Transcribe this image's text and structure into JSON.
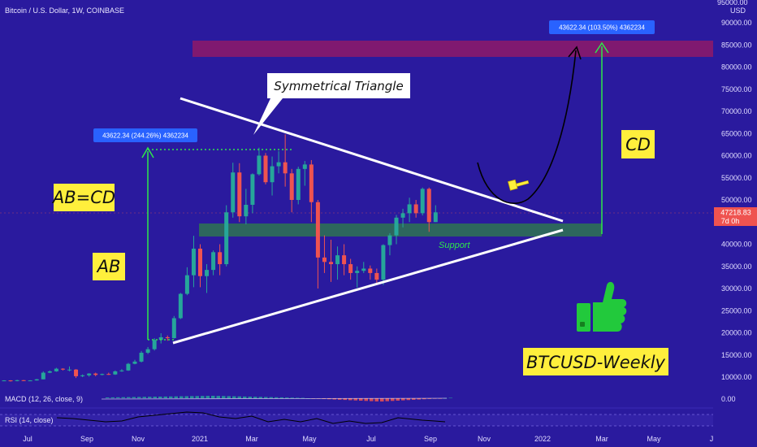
{
  "header": {
    "symbol_title": "Bitcoin / U.S. Dollar, 1W, COINBASE",
    "currency_top": "95000.00",
    "currency": "USD"
  },
  "chart_data": {
    "type": "candlestick",
    "ylim": [
      0,
      95000
    ],
    "y_ticks": [
      90000,
      85000,
      80000,
      75000,
      70000,
      65000,
      60000,
      55000,
      50000,
      45000,
      40000,
      35000,
      30000,
      25000,
      20000,
      15000,
      10000
    ],
    "y_tick_labels": [
      "90000.00",
      "85000.00",
      "80000.00",
      "75000.00",
      "70000.00",
      "65000.00",
      "60000.00",
      "55000.00",
      "50000.00",
      "45000.00",
      "40000.00",
      "35000.00",
      "30000.00",
      "25000.00",
      "20000.00",
      "15000.00",
      "10000.00"
    ],
    "x_labels": [
      "Jul",
      "Sep",
      "Nov",
      "2021",
      "Mar",
      "May",
      "Jul",
      "Sep",
      "Nov",
      "2022",
      "Mar",
      "May",
      "J"
    ],
    "last_price": "47218.83",
    "last_price_sub": "7d 0h",
    "price_axis_zero": "0.00",
    "candles": [
      [
        9200,
        9300,
        9100,
        9250
      ],
      [
        9250,
        9300,
        9000,
        9100
      ],
      [
        9100,
        9400,
        9050,
        9300
      ],
      [
        9300,
        9350,
        9100,
        9200
      ],
      [
        9200,
        9300,
        9150,
        9250
      ],
      [
        9250,
        9600,
        9200,
        9500
      ],
      [
        9500,
        11300,
        9500,
        11000
      ],
      [
        11000,
        11500,
        10900,
        11300
      ],
      [
        11300,
        12100,
        11200,
        11900
      ],
      [
        11900,
        12000,
        11500,
        11700
      ],
      [
        11700,
        12400,
        11300,
        11700
      ],
      [
        11700,
        11800,
        9800,
        10200
      ],
      [
        10200,
        10600,
        10000,
        10400
      ],
      [
        10400,
        10900,
        10100,
        10800
      ],
      [
        10800,
        11000,
        10200,
        10500
      ],
      [
        10500,
        10800,
        10400,
        10700
      ],
      [
        10700,
        11000,
        10500,
        10600
      ],
      [
        10600,
        11500,
        10500,
        11300
      ],
      [
        11300,
        11800,
        11200,
        11500
      ],
      [
        11500,
        13200,
        11400,
        13000
      ],
      [
        13000,
        13900,
        12900,
        13500
      ],
      [
        13500,
        15900,
        13300,
        15500
      ],
      [
        15500,
        16800,
        15200,
        16300
      ],
      [
        16300,
        18800,
        16000,
        18400
      ],
      [
        18400,
        19900,
        17600,
        19000
      ],
      [
        19000,
        19400,
        18200,
        18800
      ],
      [
        18800,
        23800,
        18700,
        23300
      ],
      [
        23300,
        29000,
        23100,
        28800
      ],
      [
        28800,
        34800,
        28500,
        33000
      ],
      [
        33000,
        41900,
        30300,
        39000
      ],
      [
        39000,
        40000,
        30300,
        32800
      ],
      [
        32800,
        35500,
        29000,
        34200
      ],
      [
        34200,
        38600,
        33000,
        38200
      ],
      [
        38200,
        40000,
        33000,
        35500
      ],
      [
        35500,
        48800,
        35000,
        47200
      ],
      [
        47200,
        58400,
        46000,
        56200
      ],
      [
        56200,
        58300,
        45000,
        46300
      ],
      [
        46300,
        52500,
        44500,
        48900
      ],
      [
        48900,
        56000,
        47000,
        55800
      ],
      [
        55800,
        61800,
        55500,
        60000
      ],
      [
        60000,
        60600,
        53500,
        54000
      ],
      [
        54000,
        59800,
        51000,
        57600
      ],
      [
        57600,
        61000,
        56000,
        58500
      ],
      [
        58500,
        64800,
        53000,
        56000
      ],
      [
        56000,
        57000,
        47200,
        50000
      ],
      [
        50000,
        57500,
        49000,
        57000
      ],
      [
        57000,
        58800,
        53200,
        58000
      ],
      [
        58000,
        59000,
        45000,
        49500
      ],
      [
        49500,
        50000,
        30000,
        37000
      ],
      [
        37000,
        42000,
        33500,
        36000
      ],
      [
        36000,
        41000,
        31500,
        35500
      ],
      [
        35500,
        39500,
        32000,
        37500
      ],
      [
        37500,
        40000,
        33000,
        35500
      ],
      [
        35500,
        36700,
        32000,
        33500
      ],
      [
        33500,
        35000,
        30200,
        34000
      ],
      [
        34000,
        36000,
        33500,
        34500
      ],
      [
        34500,
        35200,
        32000,
        33500
      ],
      [
        33500,
        34500,
        31000,
        32000
      ],
      [
        32000,
        40000,
        30800,
        39800
      ],
      [
        39800,
        42500,
        37500,
        42000
      ],
      [
        42000,
        46600,
        40000,
        46000
      ],
      [
        46000,
        48000,
        43800,
        47000
      ],
      [
        47000,
        50500,
        45000,
        49000
      ],
      [
        49000,
        50000,
        46000,
        47000
      ],
      [
        47000,
        52800,
        46500,
        52500
      ],
      [
        52500,
        52800,
        42800,
        45000
      ],
      [
        45000,
        48800,
        45000,
        47200
      ]
    ]
  },
  "annotations": {
    "triangle_label": "Symmetrical Triangle",
    "support_label": "Support",
    "ab_label": "AB",
    "abcd_label": "AB=CD",
    "cd_label": "CD",
    "weekly_label": "BTCUSD-Weekly",
    "measure_left": "43622.34 (244.26%) 4362234",
    "measure_right": "43622.34 (103.50%) 4362234"
  },
  "indicators": {
    "macd_label": "MACD (12, 26, close, 9)",
    "rsi_label": "RSI (14, close)"
  },
  "colors": {
    "background": "#2a1a9e",
    "up": "#26a69a",
    "down": "#ef5350",
    "green_arrow": "#2ee84a",
    "tag_yellow": "#ffef3c",
    "resistance_zone": "#8a1a6a",
    "support_zone": "#2d6a5a",
    "pill_blue": "#2962ff",
    "price_tag": "#ef5350"
  }
}
